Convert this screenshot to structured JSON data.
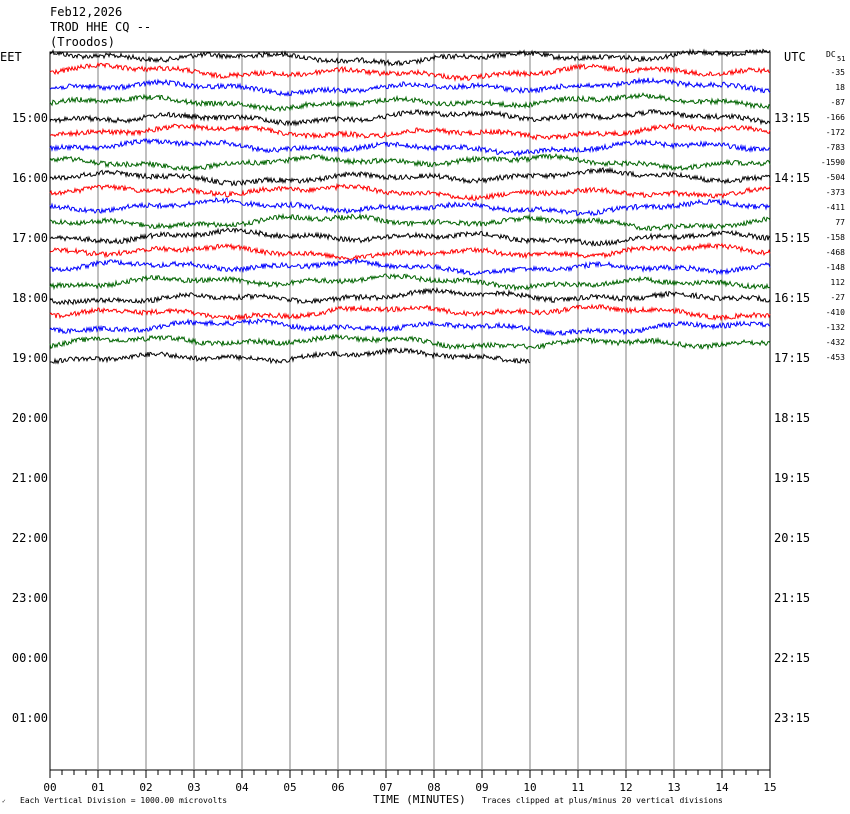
{
  "header": {
    "date": "Feb12,2026",
    "station": "TROD HHE CQ --",
    "location": "(Troodos)"
  },
  "labels": {
    "left_tz": "EET",
    "right_tz": "UTC",
    "dc_label": "DC",
    "dc_sub": "51",
    "x_axis_title": "TIME (MINUTES)",
    "scale_note": "Each Vertical Division = 1000.00 microvolts",
    "clip_note": "Traces clipped at plus/minus 20 vertical divisions"
  },
  "chart_data": {
    "type": "line",
    "title": "TROD HHE CQ --",
    "xlabel": "TIME (MINUTES)",
    "ylabel": "",
    "x_range": [
      0,
      15
    ],
    "x_ticks": [
      "00",
      "01",
      "02",
      "03",
      "04",
      "05",
      "06",
      "07",
      "08",
      "09",
      "10",
      "11",
      "12",
      "13",
      "14",
      "15"
    ],
    "left_hour_labels": [
      "15:00",
      "16:00",
      "17:00",
      "18:00",
      "19:00",
      "20:00",
      "21:00",
      "22:00",
      "23:00",
      "00:00",
      "01:00"
    ],
    "right_hour_labels": [
      "13:15",
      "14:15",
      "15:15",
      "16:15",
      "17:15",
      "18:15",
      "19:15",
      "20:15",
      "21:15",
      "22:15",
      "23:15"
    ],
    "trace_colors": [
      "#000000",
      "#ff0000",
      "#0000ff",
      "#006400"
    ],
    "dc_offsets": [
      "-35",
      "18",
      "-87",
      "-166",
      "-172",
      "-783",
      "-1590",
      "-504",
      "-373",
      "-411",
      "77",
      "-158",
      "-468",
      "-148",
      "112",
      "-27",
      "-410",
      "-132",
      "-432",
      "-453"
    ],
    "last_trace_end_minute": 10,
    "grid": "vertical minute lines",
    "legend": "none"
  }
}
